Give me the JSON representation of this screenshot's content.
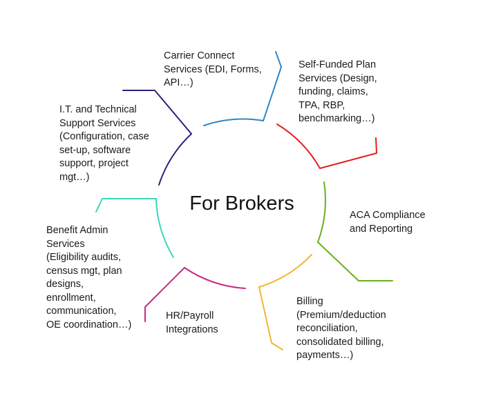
{
  "center_title": "For Brokers",
  "colors": {
    "carrier": "#2E86C8",
    "self_funded": "#E41E1E",
    "aca": "#6AAE1E",
    "billing": "#F2B535",
    "hr_payroll": "#C8287E",
    "benefit_admin": "#3BD6B8",
    "it_support": "#26237A"
  },
  "segments": {
    "carrier": {
      "lines": [
        "Carrier Connect",
        "Services (EDI, Forms,",
        "API…)"
      ]
    },
    "self_funded": {
      "lines": [
        "Self-Funded Plan",
        "Services (Design,",
        "funding, claims,",
        "TPA, RBP,",
        "benchmarking…)"
      ]
    },
    "it_support": {
      "lines": [
        "I.T. and Technical",
        "Support Services",
        "(Configuration, case",
        "set-up, software",
        "support, project",
        "mgt…)"
      ]
    },
    "aca": {
      "lines": [
        "ACA Compliance",
        "and Reporting"
      ]
    },
    "benefit_admin": {
      "lines": [
        "Benefit Admin",
        "Services",
        "(Eligibility audits,",
        "census mgt, plan",
        "designs,",
        "enrollment,",
        "communication,",
        "OE coordination…)"
      ]
    },
    "hr_payroll": {
      "lines": [
        "HR/Payroll",
        "Integrations"
      ]
    },
    "billing": {
      "lines": [
        "Billing",
        "(Premium/deduction",
        "reconciliation,",
        "consolidated billing,",
        "payments…)"
      ]
    }
  }
}
